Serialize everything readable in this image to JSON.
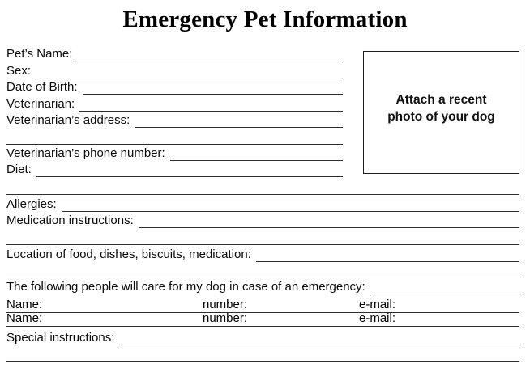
{
  "title": "Emergency Pet Information",
  "colors": {
    "background": "#ffffff",
    "text": "#000000",
    "line": "#2e2e2e"
  },
  "photo_box": {
    "line1": "Attach a recent",
    "line2": "photo of your dog"
  },
  "labels": {
    "pets_name": "Pet’s Name:",
    "sex": "Sex:",
    "date_of_birth": "Date of Birth:",
    "veterinarian": "Veterinarian:",
    "vet_address": "Veterinarian’s address:",
    "vet_phone": "Veterinarian’s phone number:",
    "diet": "Diet:",
    "allergies": "Allergies:",
    "medication_instructions": "Medication instructions:",
    "location": "Location of food, dishes, biscuits, medication:",
    "caretakers_intro": "The following people will care for my dog in case of an emergency:",
    "special_instructions": "Special instructions:"
  },
  "caretaker_row": {
    "name": "Name:",
    "number": "number:",
    "email": "e-mail:"
  }
}
